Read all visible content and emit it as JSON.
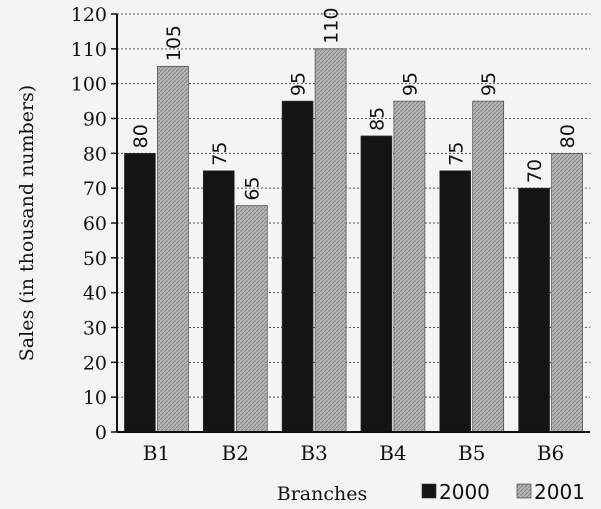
{
  "chart_data": {
    "type": "bar",
    "categories": [
      "B1",
      "B2",
      "B3",
      "B4",
      "B5",
      "B6"
    ],
    "series": [
      {
        "name": "2000",
        "values": [
          80,
          75,
          95,
          85,
          75,
          70
        ],
        "color": "#141414"
      },
      {
        "name": "2001",
        "values": [
          105,
          65,
          110,
          95,
          95,
          80
        ],
        "color": "#a9a9a9"
      }
    ],
    "title": "",
    "xlabel": "Branches",
    "ylabel": "Sales (in thousand numbers)",
    "ylim": [
      0,
      120
    ],
    "yticks": [
      0,
      10,
      20,
      30,
      40,
      50,
      60,
      70,
      80,
      90,
      100,
      110,
      120
    ],
    "grid": true,
    "legend_position": "bottom-right"
  }
}
